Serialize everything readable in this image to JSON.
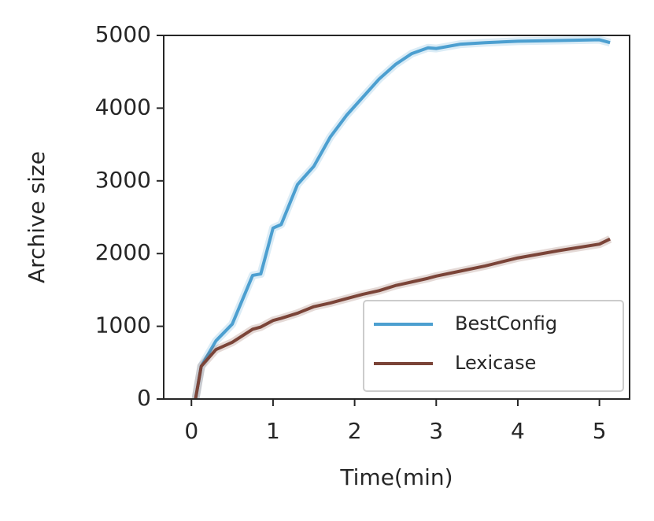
{
  "chart_data": {
    "type": "line",
    "x_label": "Time(min)",
    "y_label": "Archive size",
    "x": [
      0.05,
      0.12,
      0.3,
      0.5,
      0.75,
      0.85,
      1.0,
      1.1,
      1.3,
      1.5,
      1.7,
      1.9,
      2.1,
      2.3,
      2.5,
      2.7,
      2.9,
      3.0,
      3.3,
      3.6,
      4.0,
      4.5,
      5.0,
      5.13
    ],
    "series": [
      {
        "name": "BestConfig",
        "color": "#4c9fd0",
        "values": [
          0,
          450,
          800,
          1030,
          1700,
          1720,
          2350,
          2400,
          2950,
          3200,
          3600,
          3900,
          4150,
          4400,
          4600,
          4750,
          4830,
          4820,
          4880,
          4900,
          4920,
          4930,
          4940,
          4900
        ]
      },
      {
        "name": "Lexicase",
        "color": "#7b4438",
        "values": [
          0,
          450,
          680,
          780,
          960,
          990,
          1080,
          1110,
          1180,
          1270,
          1320,
          1380,
          1440,
          1490,
          1560,
          1610,
          1660,
          1690,
          1760,
          1830,
          1940,
          2040,
          2130,
          2200
        ]
      }
    ],
    "xlim": [
      -0.34,
      5.37
    ],
    "ylim": [
      0,
      5000
    ],
    "xticks": [
      0,
      1,
      2,
      3,
      4,
      5
    ],
    "yticks": [
      0,
      1000,
      2000,
      3000,
      4000,
      5000
    ],
    "grid": false,
    "legend": "lower right"
  }
}
